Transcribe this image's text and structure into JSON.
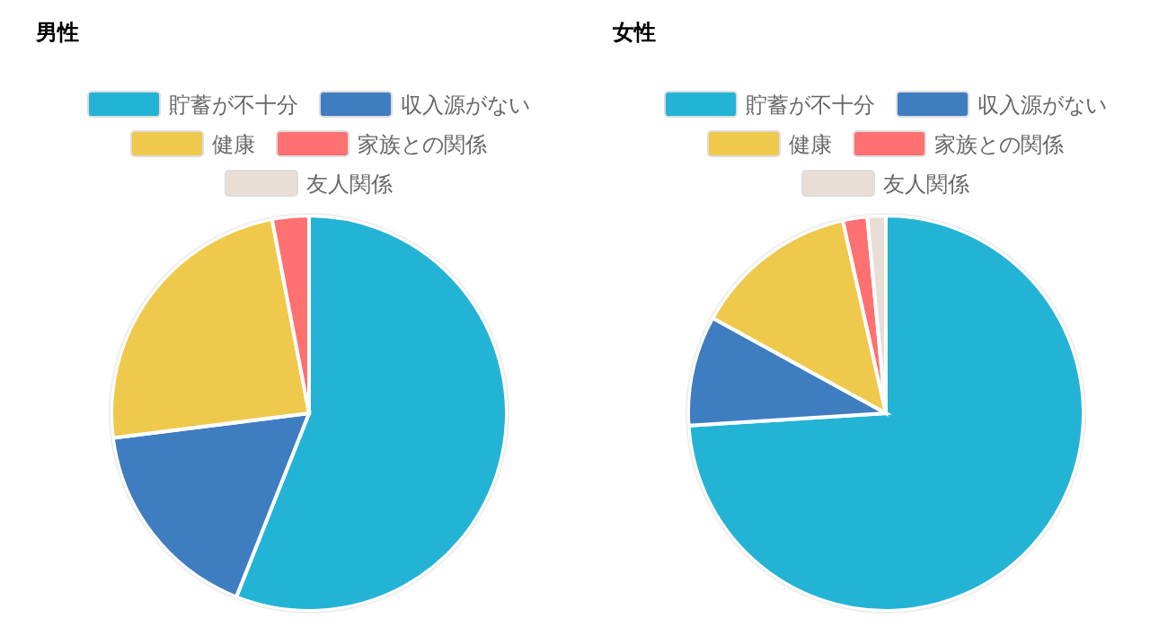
{
  "chart_data": [
    {
      "type": "pie",
      "title": "男性",
      "legend": "top",
      "categories": [
        "貯蓄が不十分",
        "収入源がない",
        "健康",
        "家族との関係",
        "友人関係"
      ],
      "values": [
        56,
        17,
        24,
        3,
        0
      ],
      "colors": [
        "#23b3d5",
        "#3f7dc1",
        "#efc94c",
        "#ff7070",
        "#e8ded5"
      ]
    },
    {
      "type": "pie",
      "title": "女性",
      "legend": "top",
      "categories": [
        "貯蓄が不十分",
        "収入源がない",
        "健康",
        "家族との関係",
        "友人関係"
      ],
      "values": [
        74,
        9,
        13.5,
        2,
        1.5
      ],
      "colors": [
        "#23b3d5",
        "#3f7dc1",
        "#efc94c",
        "#ff7070",
        "#e8ded5"
      ]
    }
  ]
}
